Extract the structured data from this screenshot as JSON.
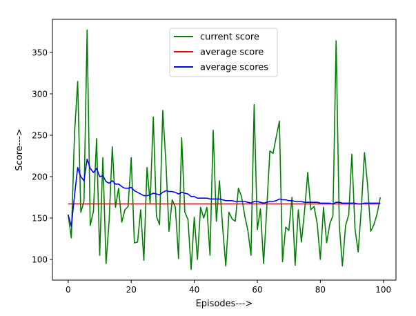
{
  "chart_data": {
    "type": "line",
    "title": "",
    "xlabel": "Episodes--->",
    "ylabel": "Score--->",
    "xlim": [
      -5,
      104
    ],
    "ylim": [
      75,
      390
    ],
    "xticks": [
      0,
      20,
      40,
      60,
      80,
      100
    ],
    "yticks": [
      100,
      150,
      200,
      250,
      300,
      350
    ],
    "grid": false,
    "legend_position": "top-center",
    "x": [
      0,
      1,
      2,
      3,
      4,
      5,
      6,
      7,
      8,
      9,
      10,
      11,
      12,
      13,
      14,
      15,
      16,
      17,
      18,
      19,
      20,
      21,
      22,
      23,
      24,
      25,
      26,
      27,
      28,
      29,
      30,
      31,
      32,
      33,
      34,
      35,
      36,
      37,
      38,
      39,
      40,
      41,
      42,
      43,
      44,
      45,
      46,
      47,
      48,
      49,
      50,
      51,
      52,
      53,
      54,
      55,
      56,
      57,
      58,
      59,
      60,
      61,
      62,
      63,
      64,
      65,
      66,
      67,
      68,
      69,
      70,
      71,
      72,
      73,
      74,
      75,
      76,
      77,
      78,
      79,
      80,
      81,
      82,
      83,
      84,
      85,
      86,
      87,
      88,
      89,
      90,
      91,
      92,
      93,
      94,
      95,
      96,
      97,
      98,
      99
    ],
    "series": [
      {
        "name": "current score",
        "color": "#008000",
        "values": [
          154,
          126,
          252,
          315,
          157,
          170,
          377,
          141,
          158,
          246,
          105,
          223,
          95,
          147,
          236,
          163,
          186,
          145,
          160,
          164,
          223,
          120,
          121,
          160,
          99,
          211,
          168,
          272,
          152,
          142,
          280,
          217,
          134,
          172,
          163,
          101,
          247,
          157,
          148,
          88,
          151,
          100,
          163,
          150,
          163,
          105,
          256,
          146,
          195,
          139,
          92,
          157,
          149,
          146,
          186,
          176,
          153,
          135,
          105,
          287,
          136,
          161,
          95,
          162,
          231,
          228,
          248,
          267,
          97,
          139,
          135,
          175,
          93,
          160,
          121,
          159,
          205,
          160,
          164,
          143,
          100,
          163,
          120,
          143,
          153,
          364,
          142,
          92,
          141,
          154,
          227,
          137,
          109,
          161,
          229,
          189,
          134,
          142,
          155,
          175
        ]
      },
      {
        "name": "average score",
        "color": "#ff0000",
        "values": [
          167,
          167,
          167,
          167,
          167,
          167,
          167,
          167,
          167,
          167,
          167,
          167,
          167,
          167,
          167,
          167,
          167,
          167,
          167,
          167,
          167,
          167,
          167,
          167,
          167,
          167,
          167,
          167,
          167,
          167,
          167,
          167,
          167,
          167,
          167,
          167,
          167,
          167,
          167,
          167,
          167,
          167,
          167,
          167,
          167,
          167,
          167,
          167,
          167,
          167,
          167,
          167,
          167,
          167,
          167,
          167,
          167,
          167,
          167,
          167,
          167,
          167,
          167,
          167,
          167,
          167,
          167,
          167,
          167,
          167,
          167,
          167,
          167,
          167,
          167,
          167,
          167,
          167,
          167,
          167,
          167,
          167,
          167,
          167,
          167,
          167,
          167,
          167,
          167,
          167,
          167,
          167,
          167,
          167,
          167,
          167,
          167,
          167,
          167,
          167
        ]
      },
      {
        "name": "average scores",
        "color": "#0000ff",
        "values": [
          154,
          140,
          177,
          211,
          200,
          195,
          221,
          210,
          205,
          210,
          200,
          201,
          194,
          192,
          195,
          191,
          191,
          188,
          186,
          186,
          187,
          183,
          181,
          179,
          177,
          177,
          178,
          180,
          179,
          178,
          181,
          183,
          182,
          182,
          181,
          179,
          181,
          180,
          179,
          176,
          176,
          174,
          174,
          174,
          174,
          173,
          173,
          173,
          173,
          172,
          171,
          171,
          171,
          170,
          170,
          170,
          170,
          169,
          168,
          170,
          170,
          169,
          168,
          169,
          170,
          170,
          171,
          173,
          172,
          172,
          171,
          171,
          170,
          170,
          170,
          169,
          169,
          169,
          169,
          169,
          168,
          168,
          168,
          168,
          167,
          169,
          169,
          168,
          168,
          168,
          168,
          168,
          167,
          167,
          168,
          168,
          168,
          168,
          168,
          168
        ]
      }
    ]
  }
}
